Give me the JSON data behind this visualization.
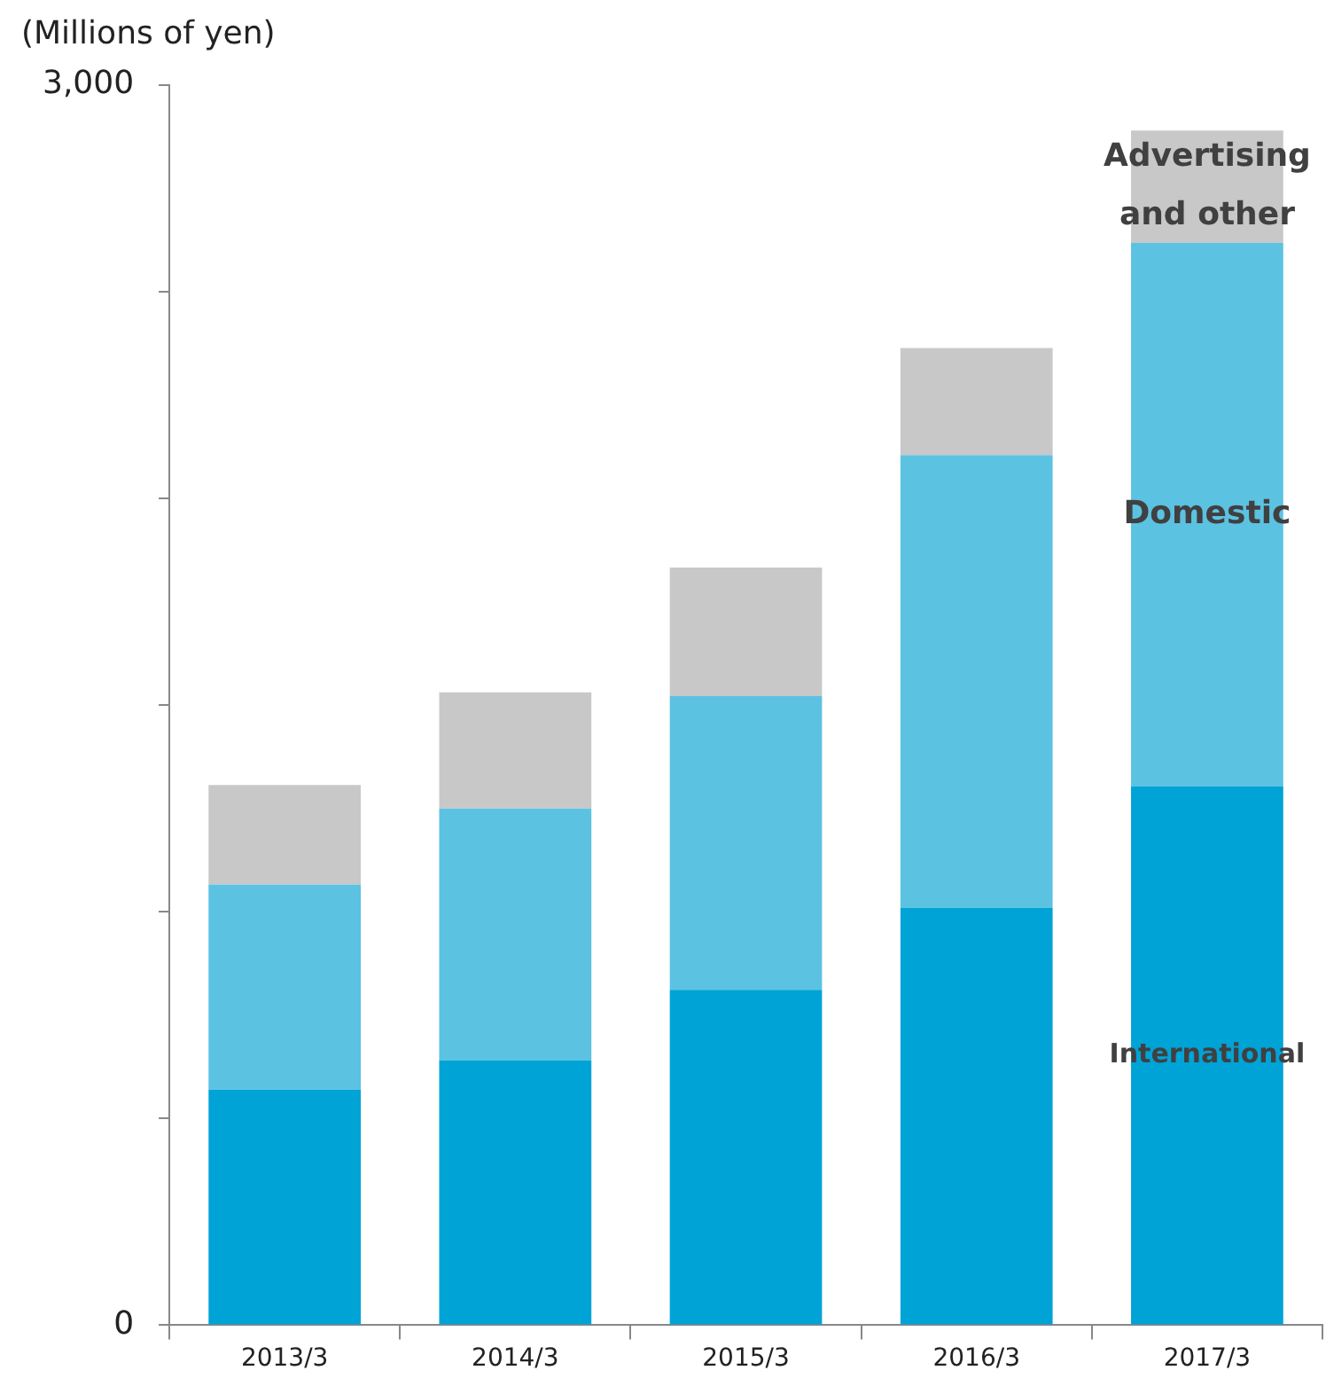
{
  "chart_data": {
    "type": "bar",
    "ylabel": "(Millions of yen)",
    "stacked": true,
    "legend": false,
    "grid": false,
    "categories": [
      "2013/3",
      "2014/3",
      "2015/3",
      "2016/3",
      "2017/3"
    ],
    "series": [
      {
        "name": "International",
        "color": "#00a3d6",
        "values": [
          570,
          640,
          811,
          1009,
          1303
        ]
      },
      {
        "name": "Domestic",
        "color": "#5bc2e2",
        "values": [
          496,
          610,
          711,
          1096,
          1315
        ]
      },
      {
        "name": "Advertising and other",
        "color": "#c8c8c8",
        "values": [
          241,
          281,
          311,
          259,
          272
        ]
      }
    ],
    "ylim": [
      0,
      3000
    ],
    "yticks": [
      0,
      {
        "value": 500,
        "label": null
      },
      {
        "value": 1000,
        "label": null
      },
      {
        "value": 1500,
        "label": null
      },
      {
        "value": 2000,
        "label": null
      },
      {
        "value": 2500,
        "label": null
      },
      {
        "value": 3000,
        "label": "3,000"
      }
    ]
  }
}
